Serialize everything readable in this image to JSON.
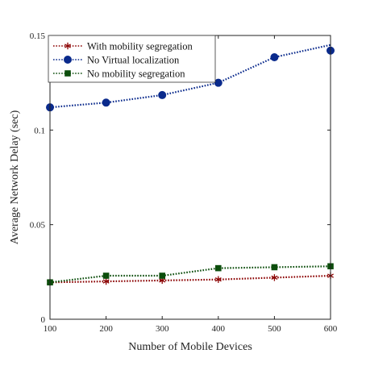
{
  "chart_data": {
    "type": "line",
    "xlabel": "Number of Mobile Devices",
    "ylabel": "Average Network Delay (sec)",
    "xlim": [
      100,
      600
    ],
    "ylim": [
      0,
      0.15
    ],
    "x": [
      100,
      200,
      300,
      400,
      500,
      600
    ],
    "x_ticks": [
      "100",
      "200",
      "300",
      "400",
      "500",
      "600"
    ],
    "y_ticks": [
      {
        "value": 0,
        "label": "0"
      },
      {
        "value": 0.05,
        "label": "0.05"
      },
      {
        "value": 0.1,
        "label": "0.1"
      },
      {
        "value": 0.15,
        "label": "0.15"
      }
    ],
    "grid": false,
    "legend_position": "top-left",
    "series": [
      {
        "name": "With mobility segregation",
        "values": [
          0.0195,
          0.02,
          0.0205,
          0.021,
          0.022,
          0.023
        ],
        "color": "#8B0000",
        "marker": "asterisk",
        "line_style": "dotted"
      },
      {
        "name": "No Virtual localization",
        "values": [
          0.112,
          0.1145,
          0.1185,
          0.125,
          0.1385,
          0.142
        ],
        "color": "#0A2A8C",
        "marker": "circle",
        "line_style": "dotted",
        "line_end": 0.145
      },
      {
        "name": "No mobility segregation",
        "values": [
          0.0195,
          0.023,
          0.023,
          0.027,
          0.0275,
          0.028
        ],
        "color": "#0B4D0B",
        "marker": "square",
        "line_style": "dotted"
      }
    ]
  }
}
